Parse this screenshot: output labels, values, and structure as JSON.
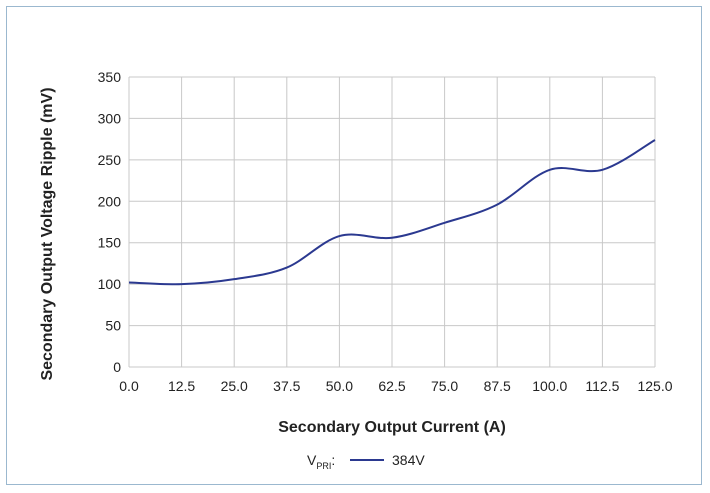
{
  "chart_data": {
    "type": "line",
    "title": "",
    "xlabel": "Secondary Output Current (A)",
    "ylabel": "Secondary Output Voltage Ripple (mV)",
    "xlim": [
      0,
      125
    ],
    "ylim": [
      0,
      350
    ],
    "x_ticks": [
      "0.0",
      "12.5",
      "25.0",
      "37.5",
      "50.0",
      "62.5",
      "75.0",
      "87.5",
      "100.0",
      "112.5",
      "125.0"
    ],
    "y_ticks": [
      "0",
      "50",
      "100",
      "150",
      "200",
      "250",
      "300",
      "350"
    ],
    "grid": true,
    "legend": {
      "title_main": "V",
      "title_sub": "PRI",
      "title_suffix": ":",
      "placement": "bottom-center"
    },
    "series": [
      {
        "name": "384V",
        "color": "#2b3990",
        "x": [
          0,
          12.5,
          25,
          37.5,
          50,
          62.5,
          75,
          87.5,
          100,
          112.5,
          125
        ],
        "y": [
          102,
          100,
          106,
          120,
          158,
          156,
          174,
          196,
          238,
          238,
          274
        ]
      }
    ]
  }
}
